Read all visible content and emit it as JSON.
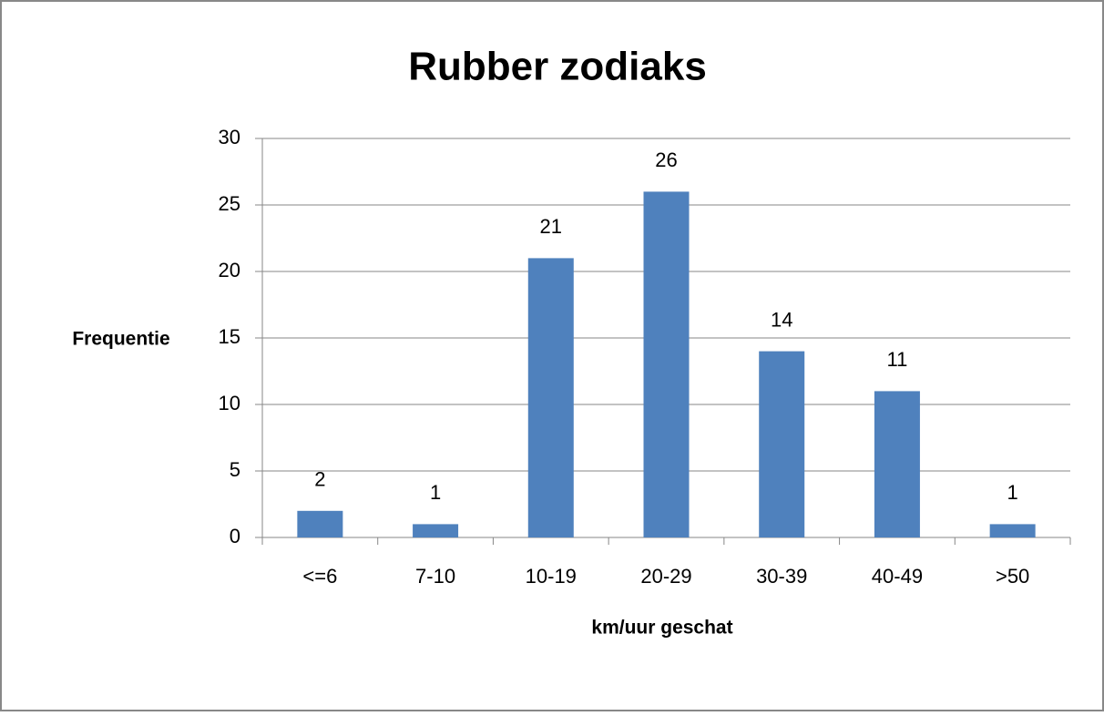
{
  "chart_data": {
    "type": "bar",
    "title": "Rubber zodiaks",
    "x_label": "km/uur geschat",
    "y_label": "Frequentie",
    "categories": [
      "<=6",
      "7-10",
      "10-19",
      "20-29",
      "30-39",
      "40-49",
      ">50"
    ],
    "values": [
      2,
      1,
      21,
      26,
      14,
      11,
      1
    ],
    "color": "#4f81bd",
    "ylim": [
      0,
      30
    ],
    "yticks": [
      0,
      5,
      10,
      15,
      20,
      25,
      30
    ],
    "grid": true
  }
}
